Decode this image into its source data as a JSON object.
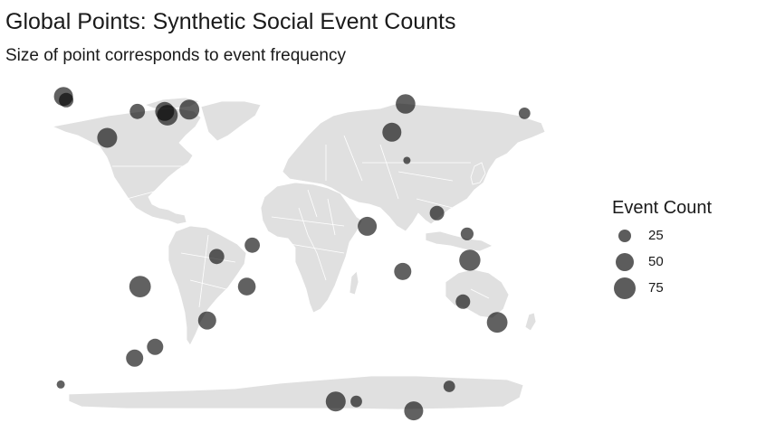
{
  "title": "Global Points: Synthetic Social Event Counts",
  "subtitle": "Size of point corresponds to event frequency",
  "legend": {
    "title": "Event Count",
    "items": [
      {
        "label": "25",
        "value": 25
      },
      {
        "label": "50",
        "value": 50
      },
      {
        "label": "75",
        "value": 75
      }
    ]
  },
  "colors": {
    "land": "#e0e0e0",
    "border": "#ffffff",
    "point": "#000000",
    "point_opacity": 0.62
  },
  "chart_data": {
    "type": "scatter",
    "projection": "equirectangular world map",
    "xlim": [
      -180,
      180
    ],
    "ylim": [
      -90,
      90
    ],
    "size_scale": "area proportional to event count",
    "points": [
      {
        "lon": -172,
        "lat": 82,
        "count": 55
      },
      {
        "lon": -170,
        "lat": 80,
        "count": 32
      },
      {
        "lon": -140,
        "lat": 60,
        "count": 60
      },
      {
        "lon": -118,
        "lat": 74,
        "count": 35
      },
      {
        "lon": -98,
        "lat": 74,
        "count": 55
      },
      {
        "lon": -96,
        "lat": 72,
        "count": 65
      },
      {
        "lon": -80,
        "lat": 75,
        "count": 60
      },
      {
        "lon": 68,
        "lat": 63,
        "count": 55
      },
      {
        "lon": 78,
        "lat": 78,
        "count": 58
      },
      {
        "lon": 165,
        "lat": 73,
        "count": 20
      },
      {
        "lon": 79,
        "lat": 48,
        "count": 8
      },
      {
        "lon": 50,
        "lat": 13,
        "count": 55
      },
      {
        "lon": 101,
        "lat": 20,
        "count": 32
      },
      {
        "lon": 123,
        "lat": 9,
        "count": 25
      },
      {
        "lon": 125,
        "lat": -5,
        "count": 68
      },
      {
        "lon": 76,
        "lat": -11,
        "count": 45
      },
      {
        "lon": 120,
        "lat": -27,
        "count": 32
      },
      {
        "lon": 145,
        "lat": -38,
        "count": 65
      },
      {
        "lon": -60,
        "lat": -3,
        "count": 35
      },
      {
        "lon": -34,
        "lat": 3,
        "count": 35
      },
      {
        "lon": -38,
        "lat": -19,
        "count": 48
      },
      {
        "lon": -116,
        "lat": -19,
        "count": 70
      },
      {
        "lon": -67,
        "lat": -37,
        "count": 50
      },
      {
        "lon": -105,
        "lat": -51,
        "count": 40
      },
      {
        "lon": -120,
        "lat": -57,
        "count": 45
      },
      {
        "lon": -174,
        "lat": -71,
        "count": 10
      },
      {
        "lon": 110,
        "lat": -72,
        "count": 20
      },
      {
        "lon": 27,
        "lat": -80,
        "count": 60
      },
      {
        "lon": 42,
        "lat": -80,
        "count": 20
      },
      {
        "lon": 84,
        "lat": -85,
        "count": 55
      }
    ]
  }
}
